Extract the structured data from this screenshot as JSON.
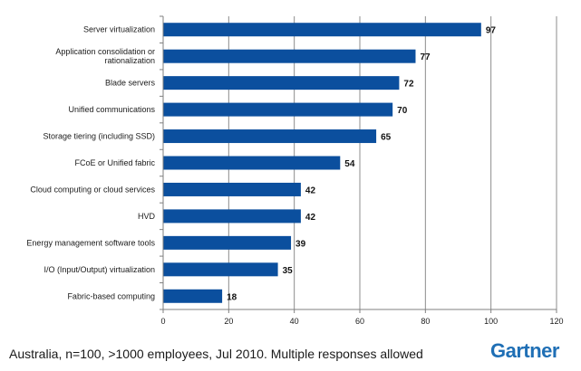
{
  "footnote": "Australia, n=100, >1000 employees, Jul 2010. Multiple responses allowed",
  "logo": "Gartner",
  "colors": {
    "bar": "#0b4f9e",
    "grid": "#8c8c8c",
    "axis": "#7f7f7f",
    "logo": "#1f6fb5"
  },
  "chart_data": {
    "type": "bar",
    "orientation": "horizontal",
    "title": "",
    "xlabel": "",
    "ylabel": "",
    "categories": [
      [
        "Server virtualization"
      ],
      [
        "Application consolidation or",
        "rationalization"
      ],
      [
        "Blade servers"
      ],
      [
        "Unified communications"
      ],
      [
        "Storage tiering (including SSD)"
      ],
      [
        "FCoE or Unified fabric"
      ],
      [
        "Cloud computing or cloud services"
      ],
      [
        "HVD"
      ],
      [
        "Energy management software tools"
      ],
      [
        "I/O (Input/Output) virtualization"
      ],
      [
        "Fabric-based computing"
      ]
    ],
    "values": [
      97,
      77,
      72,
      70,
      65,
      54,
      42,
      42,
      39,
      35,
      18
    ],
    "xlim": [
      0,
      120
    ],
    "xticks": [
      0,
      20,
      40,
      60,
      80,
      100,
      120
    ],
    "grid": true,
    "legend": "none"
  }
}
